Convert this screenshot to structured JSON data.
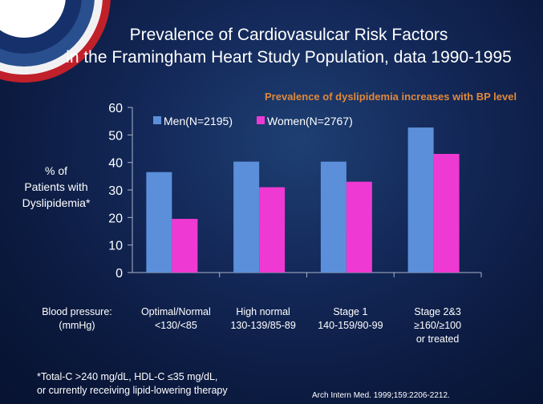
{
  "title_line1": "Prevalence of Cardiovasulcar Risk Factors",
  "title_line2": "in the Framingham Heart Study Population, data 1990-1995",
  "subtitle": "Prevalence of dyslipidemia increases with BP level",
  "ylabel_lines": [
    "% of",
    "Patients with",
    "Dyslipidemia*"
  ],
  "axis_prefix_lines": [
    "Blood pressure:",
    "(mmHg)"
  ],
  "category_lines": [
    [
      "Optimal/Normal",
      "<130/<85"
    ],
    [
      "High normal",
      "130-139/85-89"
    ],
    [
      "Stage 1",
      "140-159/90-99"
    ],
    [
      "Stage 2&3",
      "≥160/≥100",
      "or treated"
    ]
  ],
  "footnote_lines": [
    "*Total-C >240 mg/dL, HDL-C ≤35 mg/dL,",
    "or currently receiving lipid-lowering therapy"
  ],
  "citation": "Arch Intern Med. 1999;159:2206-2212.",
  "chart_data": {
    "type": "bar",
    "categories": [
      "Optimal/Normal <130/<85",
      "High normal 130-139/85-89",
      "Stage 1 140-159/90-99",
      "Stage 2&3 ≥160/≥100 or treated"
    ],
    "series": [
      {
        "name": "Men(N=2195)",
        "values": [
          36.5,
          40.3,
          40.3,
          52.7
        ],
        "color": "#5b8fd9"
      },
      {
        "name": "Women(N=2767)",
        "values": [
          19.5,
          31.0,
          33.0,
          43.1
        ],
        "color": "#ee3ad2"
      }
    ],
    "title": "Prevalence of Cardiovasulcar Risk Factors in the Framingham Heart Study Population, data 1990-1995",
    "ylabel": "% of Patients with Dyslipidemia*",
    "xlabel": "Blood pressure: (mmHg)",
    "ylim": [
      0,
      60
    ],
    "yticks": [
      0,
      10,
      20,
      30,
      40,
      50,
      60
    ],
    "grid": false,
    "legend": "top-left"
  }
}
